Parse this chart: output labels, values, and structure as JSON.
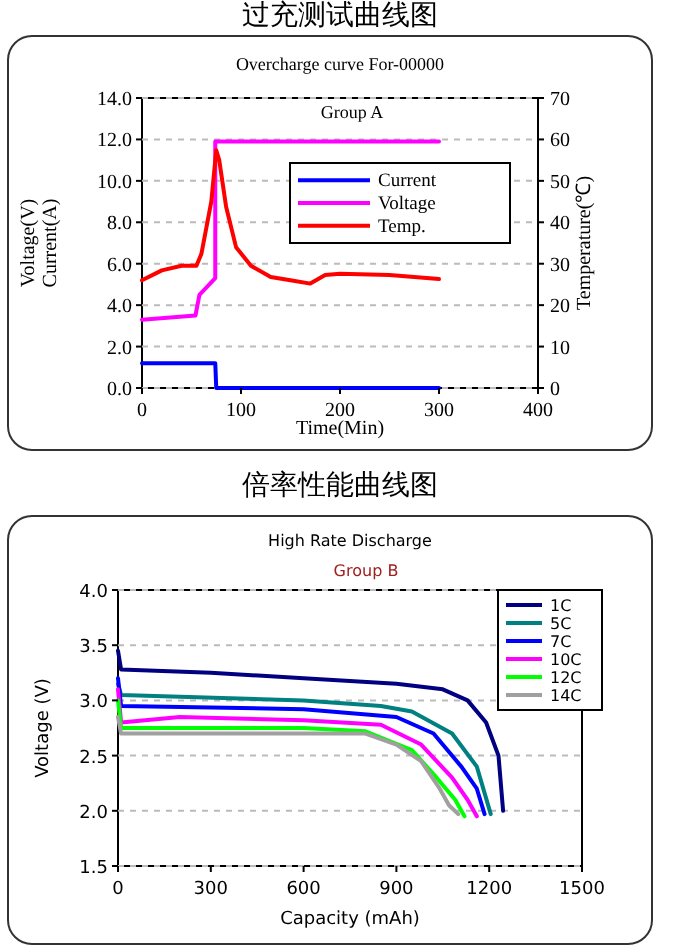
{
  "chart_data": [
    {
      "type": "line",
      "title": "过充测试曲线图",
      "subtitle": "Overcharge  curve For-00000",
      "annotations": [
        "Group A"
      ],
      "xlabel": "Time(Min)",
      "ylabel": "Voltage(V)\nCurrent(A)",
      "y2label": "Temperature(℃)",
      "xlim": [
        0,
        400
      ],
      "xticks": [
        0,
        100,
        200,
        300,
        400
      ],
      "ylim": [
        0,
        14
      ],
      "yticks": [
        {
          "value": 0,
          "label": "0.0"
        },
        {
          "value": 2,
          "label": "2.0"
        },
        {
          "value": 4,
          "label": "4.0"
        },
        {
          "value": 6,
          "label": "6.0"
        },
        {
          "value": 8,
          "label": "8.0"
        },
        {
          "value": 10,
          "label": "10.0"
        },
        {
          "value": 12,
          "label": "12.0"
        },
        {
          "value": 14,
          "label": "14.0"
        }
      ],
      "y2lim": [
        0,
        70
      ],
      "y2ticks": [
        0,
        10,
        20,
        30,
        40,
        50,
        60,
        70
      ],
      "grid": "y",
      "legend": "right",
      "series": [
        {
          "name": "Current",
          "color": "#0000ff",
          "x": [
            0,
            74,
            75,
            300
          ],
          "values": [
            1.2,
            1.2,
            0,
            0
          ]
        },
        {
          "name": "Voltage",
          "color": "#ff00ff",
          "x": [
            0,
            54,
            58,
            74,
            74,
            150,
            300
          ],
          "values": [
            3.3,
            3.5,
            4.5,
            5.3,
            11.9,
            11.9,
            11.9
          ]
        },
        {
          "name": "Temp.",
          "color": "#ff0000",
          "axis": "y2",
          "x": [
            0,
            20,
            40,
            55,
            60,
            70,
            75,
            78,
            85,
            95,
            110,
            130,
            150,
            170,
            185,
            200,
            250,
            300
          ],
          "values": [
            26,
            28.4,
            29.5,
            29.5,
            32.4,
            45,
            57.4,
            55,
            43.7,
            34,
            29.5,
            26.8,
            26,
            25.2,
            27.3,
            27.6,
            27.3,
            26.3
          ]
        }
      ]
    },
    {
      "type": "line",
      "title": "倍率性能曲线图",
      "subtitle": "High Rate Discharge",
      "annotations": [
        "Group B"
      ],
      "xlabel": "Capacity (mAh)",
      "ylabel": "Voltage (V)",
      "xlim": [
        0,
        1500
      ],
      "xticks": [
        0,
        300,
        600,
        900,
        1200,
        1500
      ],
      "ylim": [
        1.5,
        4
      ],
      "yticks": [
        1.5,
        {
          "value": 2,
          "label": "2.0"
        },
        2.5,
        {
          "value": 3,
          "label": "3.0"
        },
        3.5,
        {
          "value": 4,
          "label": "4.0"
        }
      ],
      "grid": "y",
      "legend": "top right",
      "series": [
        {
          "name": "1C",
          "color": "#000080",
          "x": [
            0,
            10,
            300,
            600,
            900,
            1050,
            1130,
            1190,
            1230,
            1245
          ],
          "values": [
            3.45,
            3.28,
            3.25,
            3.2,
            3.15,
            3.1,
            3.0,
            2.8,
            2.5,
            2.0
          ]
        },
        {
          "name": "5C",
          "color": "#008080",
          "x": [
            0,
            10,
            600,
            850,
            950,
            1080,
            1160,
            1205
          ],
          "values": [
            3.15,
            3.05,
            3.0,
            2.95,
            2.9,
            2.7,
            2.4,
            1.97
          ]
        },
        {
          "name": "7C",
          "color": "#0000ff",
          "x": [
            0,
            10,
            600,
            900,
            1020,
            1110,
            1160,
            1185
          ],
          "values": [
            3.2,
            2.95,
            2.92,
            2.85,
            2.7,
            2.4,
            2.2,
            1.97
          ]
        },
        {
          "name": "10C",
          "color": "#ff00ff",
          "x": [
            0,
            10,
            200,
            600,
            850,
            980,
            1080,
            1130,
            1160
          ],
          "values": [
            3.1,
            2.8,
            2.85,
            2.82,
            2.78,
            2.6,
            2.3,
            2.1,
            1.95
          ]
        },
        {
          "name": "12C",
          "color": "#00ff00",
          "x": [
            0,
            10,
            600,
            800,
            950,
            1030,
            1090,
            1120
          ],
          "values": [
            3.0,
            2.75,
            2.75,
            2.72,
            2.55,
            2.3,
            2.1,
            1.95
          ]
        },
        {
          "name": "14C",
          "color": "#a0a0a0",
          "x": [
            0,
            10,
            800,
            900,
            980,
            1040,
            1070,
            1100
          ],
          "values": [
            2.85,
            2.7,
            2.7,
            2.6,
            2.45,
            2.2,
            2.05,
            1.97
          ]
        }
      ]
    }
  ]
}
